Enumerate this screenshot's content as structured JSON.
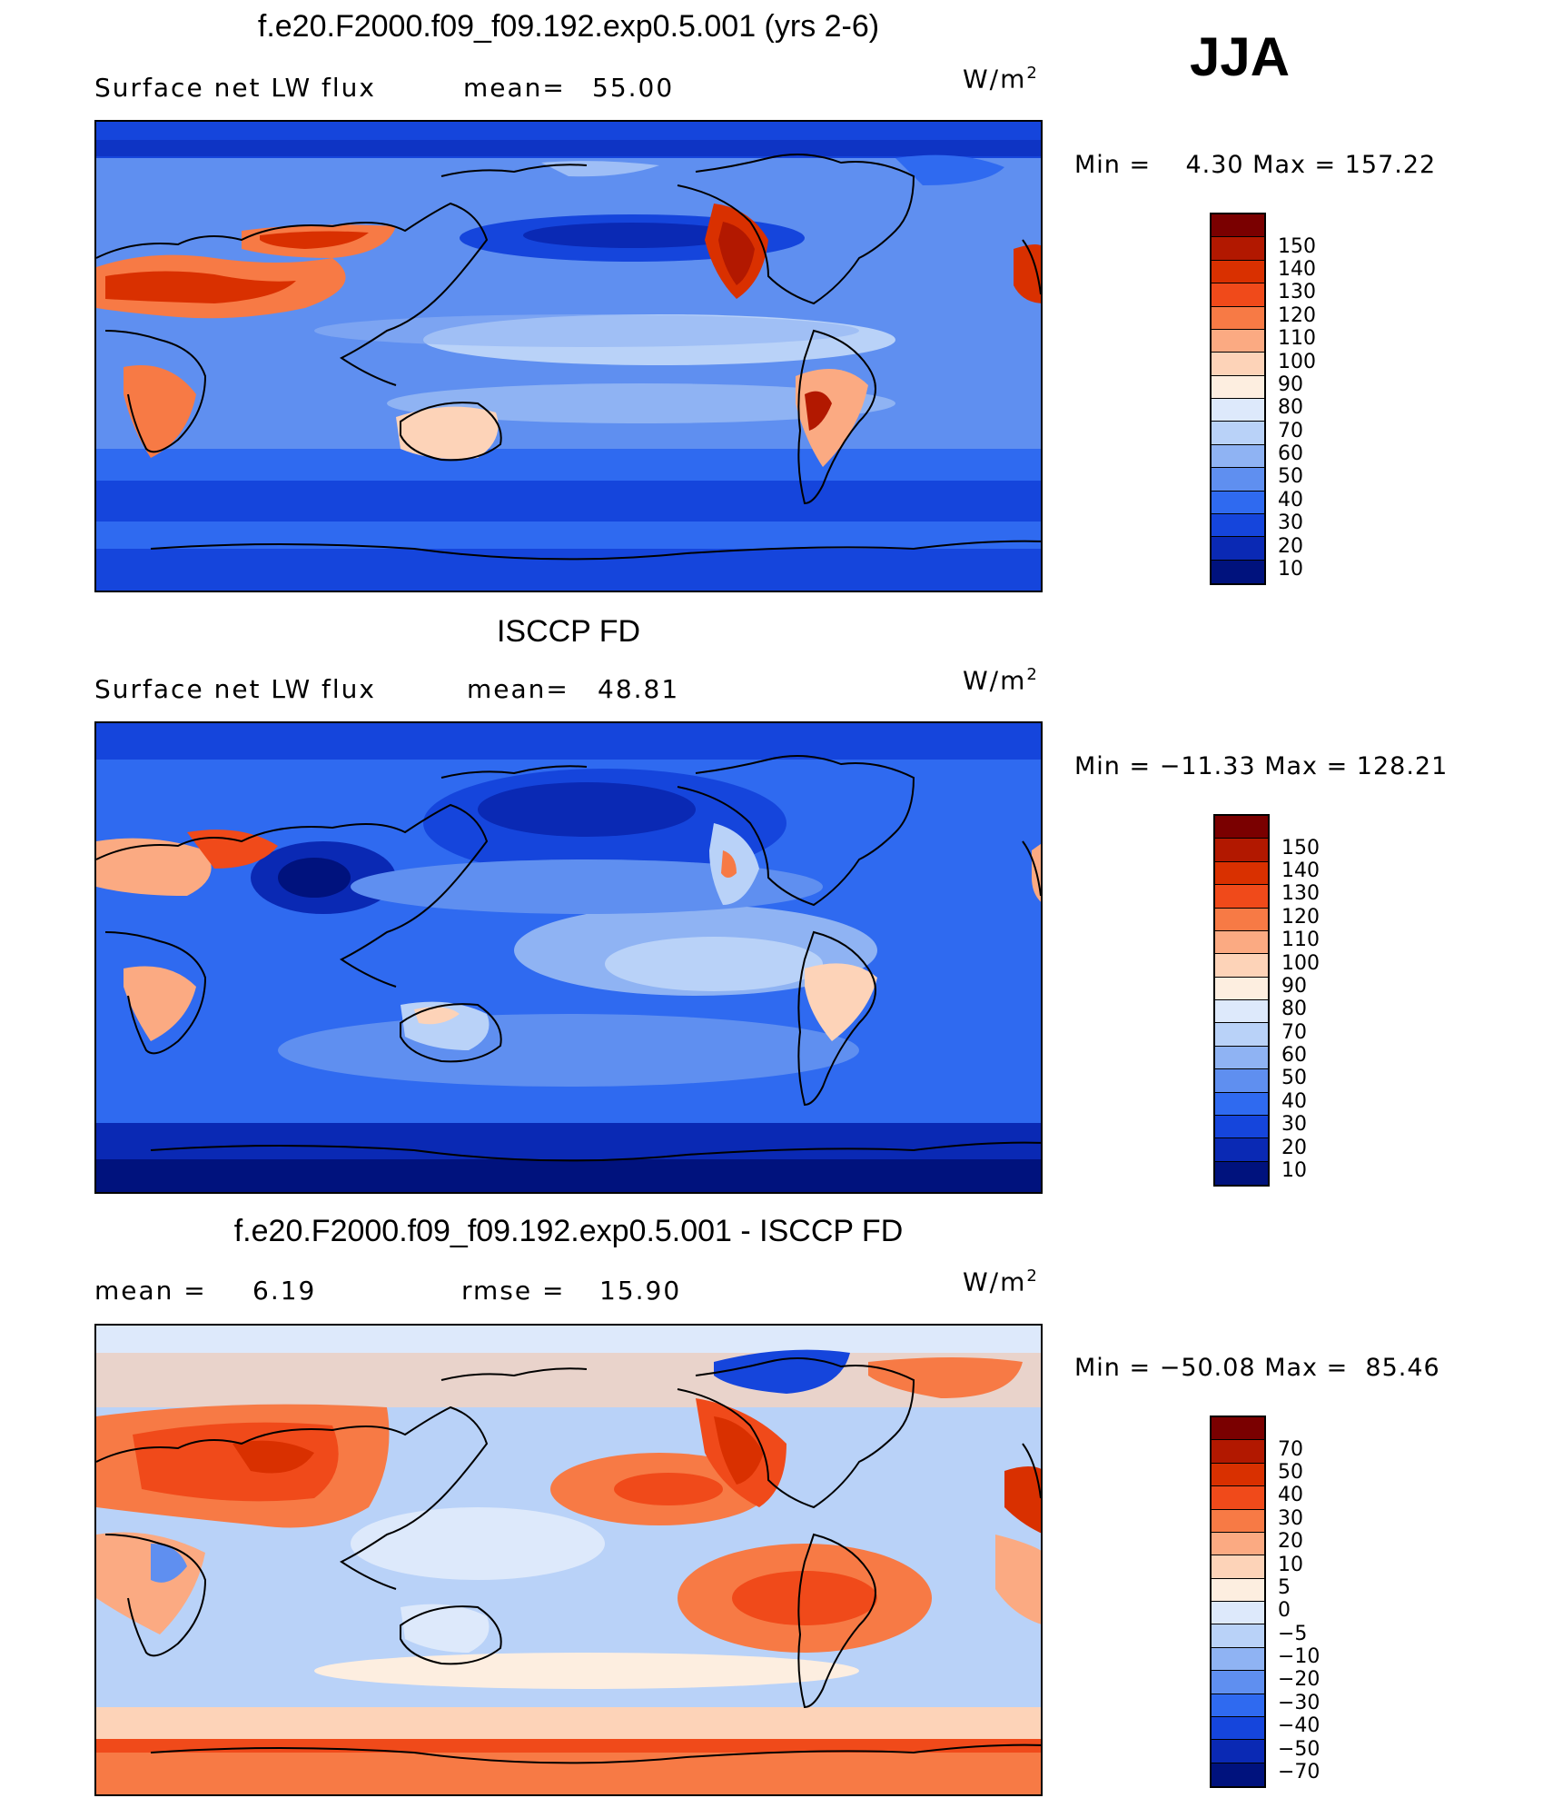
{
  "season": "JJA",
  "panels": [
    {
      "title": "f.e20.F2000.f09_f09.192.exp0.5.001 (yrs 2-6)",
      "left_label": "Surface net LW flux",
      "stat_label": "mean=",
      "stat_value": "55.00",
      "units": "W/m",
      "units_sup": "2",
      "minmax": "Min =    4.30 Max = 157.22",
      "map_style": "model",
      "colorbar_labels": [
        "150",
        "140",
        "130",
        "120",
        "110",
        "100",
        "90",
        "80",
        "70",
        "60",
        "50",
        "40",
        "30",
        "20",
        "10"
      ]
    },
    {
      "title": "ISCCP FD",
      "left_label": "Surface net LW flux",
      "stat_label": "mean=",
      "stat_value": "48.81",
      "units": "W/m",
      "units_sup": "2",
      "minmax": "Min = −11.33 Max = 128.21",
      "map_style": "obs",
      "colorbar_labels": [
        "150",
        "140",
        "130",
        "120",
        "110",
        "100",
        "90",
        "80",
        "70",
        "60",
        "50",
        "40",
        "30",
        "20",
        "10"
      ]
    },
    {
      "title": "f.e20.F2000.f09_f09.192.exp0.5.001 - ISCCP FD",
      "left_label": "mean =",
      "left_value": "6.19",
      "stat_label": "rmse =",
      "stat_value": "15.90",
      "units": "W/m",
      "units_sup": "2",
      "minmax": "Min = −50.08 Max =  85.46",
      "map_style": "diff",
      "colorbar_labels": [
        "70",
        "50",
        "40",
        "30",
        "20",
        "10",
        "5",
        "0",
        "−5",
        "−10",
        "−20",
        "−30",
        "−40",
        "−50",
        "−70"
      ]
    }
  ],
  "colors": {
    "abs_scale": [
      "#7a0000",
      "#b21800",
      "#d93000",
      "#f04a1a",
      "#f77a45",
      "#fbaa82",
      "#fdd3b8",
      "#fdeee0",
      "#dde9fb",
      "#b9d2f8",
      "#8fb3f3",
      "#5f8ff0",
      "#2f6af0",
      "#1545dc",
      "#0a29b4",
      "#00127d"
    ],
    "diff_scale": [
      "#7a0000",
      "#b21800",
      "#d93000",
      "#f04a1a",
      "#f77a45",
      "#fbaa82",
      "#fdd3b8",
      "#fdeee0",
      "#dde9fb",
      "#b9d2f8",
      "#8fb3f3",
      "#5f8ff0",
      "#2f6af0",
      "#1545dc",
      "#0a29b4",
      "#00127d"
    ]
  }
}
